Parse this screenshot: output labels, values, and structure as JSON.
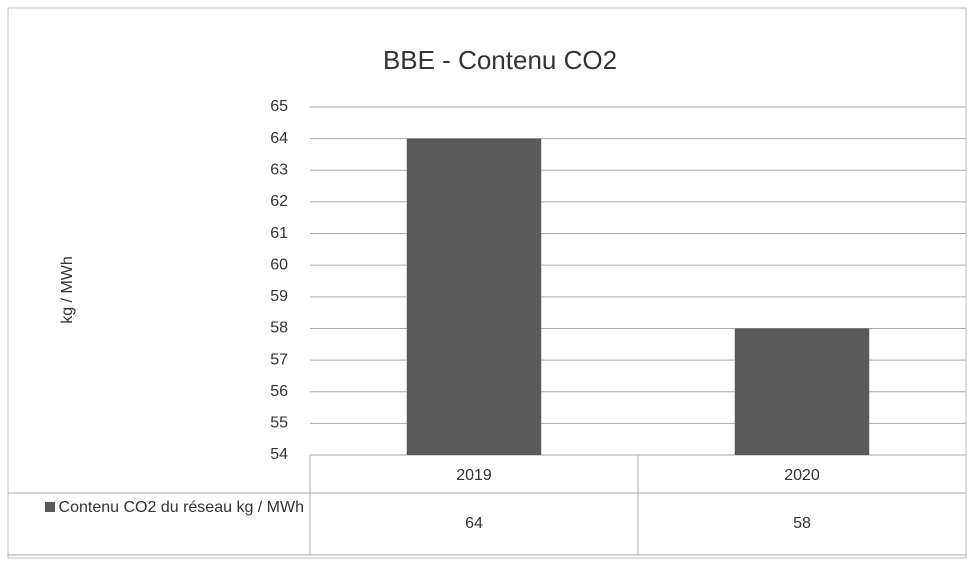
{
  "chart_data": {
    "type": "bar",
    "title": "BBE - Contenu CO2",
    "y_label": "kg / MWh",
    "categories": [
      "2019",
      "2020"
    ],
    "series": [
      {
        "name": "Contenu CO2 du réseau kg / MWh",
        "color": "#5a5a5a",
        "values": [
          64,
          58
        ]
      }
    ],
    "ylim": [
      54,
      65
    ],
    "yticks": [
      54,
      55,
      56,
      57,
      58,
      59,
      60,
      61,
      62,
      63,
      64,
      65
    ],
    "grid": true,
    "data_table": true
  }
}
